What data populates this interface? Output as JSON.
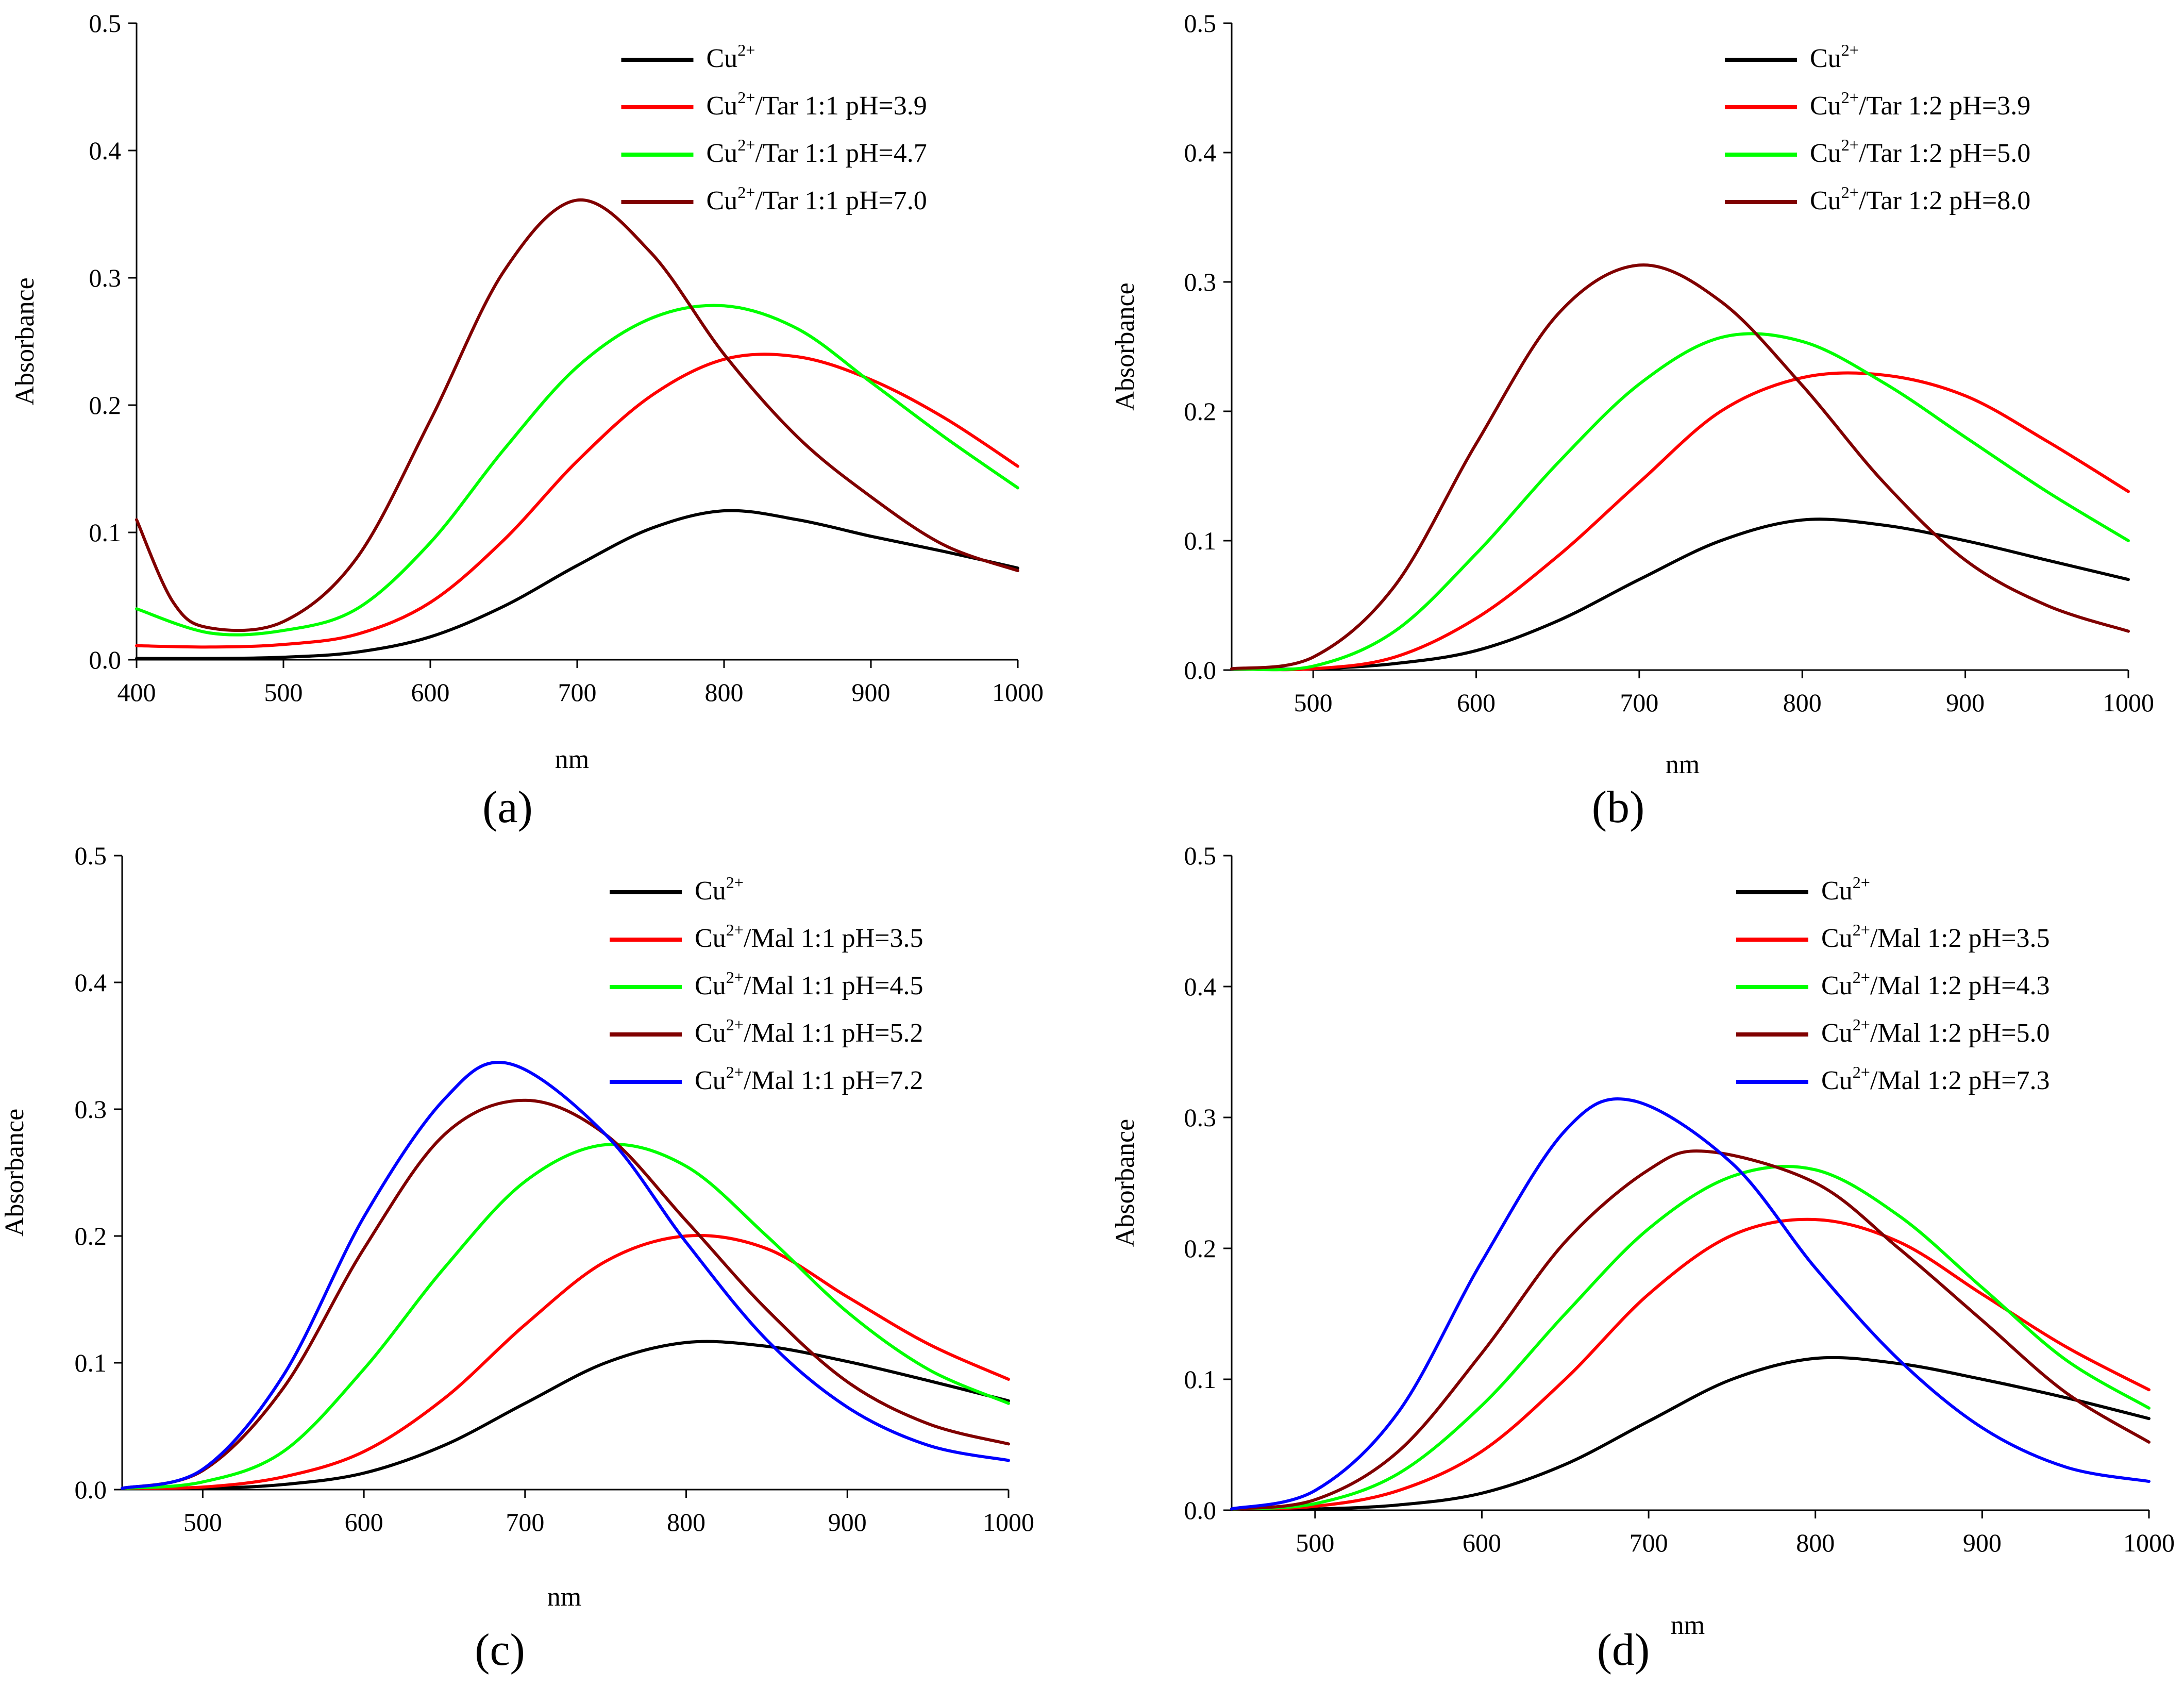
{
  "chart_data": [
    {
      "panel_label": "(a)",
      "type": "line",
      "xlabel": "nm",
      "ylabel": "Absorbance",
      "xlim": [
        400,
        1000
      ],
      "ylim": [
        0.0,
        0.5
      ],
      "xticks": [
        400,
        500,
        600,
        700,
        800,
        900,
        1000
      ],
      "yticks": [
        "0.0",
        "0.1",
        "0.2",
        "0.3",
        "0.4",
        "0.5"
      ],
      "legend_position": "top-right",
      "series": [
        {
          "name": "Cu²⁺",
          "color": "#000000",
          "x": [
            400,
            450,
            500,
            550,
            600,
            650,
            700,
            750,
            800,
            850,
            900,
            950,
            1000
          ],
          "y": [
            0.001,
            0.001,
            0.002,
            0.006,
            0.018,
            0.042,
            0.074,
            0.103,
            0.117,
            0.11,
            0.097,
            0.085,
            0.072
          ]
        },
        {
          "name": "Cu²⁺/Tar 1:1 pH=3.9",
          "color": "#ff0000",
          "x": [
            400,
            450,
            500,
            550,
            600,
            650,
            700,
            750,
            800,
            850,
            900,
            950,
            1000
          ],
          "y": [
            0.011,
            0.01,
            0.012,
            0.02,
            0.045,
            0.094,
            0.156,
            0.207,
            0.236,
            0.238,
            0.22,
            0.19,
            0.152
          ]
        },
        {
          "name": "Cu²⁺/Tar 1:1 pH=4.7",
          "color": "#00ff00",
          "x": [
            400,
            450,
            500,
            550,
            600,
            650,
            700,
            750,
            800,
            850,
            900,
            950,
            1000
          ],
          "y": [
            0.04,
            0.021,
            0.023,
            0.04,
            0.092,
            0.165,
            0.23,
            0.268,
            0.278,
            0.26,
            0.218,
            0.175,
            0.135
          ]
        },
        {
          "name": "Cu²⁺/Tar 1:1 pH=7.0",
          "color": "#800000",
          "x": [
            400,
            425,
            450,
            500,
            550,
            600,
            650,
            700,
            750,
            800,
            850,
            900,
            950,
            1000
          ],
          "y": [
            0.11,
            0.045,
            0.025,
            0.03,
            0.08,
            0.188,
            0.305,
            0.361,
            0.32,
            0.24,
            0.175,
            0.128,
            0.09,
            0.07
          ]
        }
      ]
    },
    {
      "panel_label": "(b)",
      "type": "line",
      "xlabel": "nm",
      "ylabel": "Absorbance",
      "xlim": [
        450,
        1000
      ],
      "ylim": [
        0.0,
        0.5
      ],
      "xticks": [
        500,
        600,
        700,
        800,
        900,
        1000
      ],
      "yticks": [
        "0.0",
        "0.1",
        "0.2",
        "0.3",
        "0.4",
        "0.5"
      ],
      "legend_position": "top-right",
      "series": [
        {
          "name": "Cu²⁺",
          "color": "#000000",
          "x": [
            450,
            500,
            550,
            600,
            650,
            700,
            750,
            800,
            850,
            900,
            950,
            1000
          ],
          "y": [
            0.001,
            0.001,
            0.005,
            0.015,
            0.038,
            0.07,
            0.1,
            0.116,
            0.112,
            0.1,
            0.085,
            0.07
          ]
        },
        {
          "name": "Cu²⁺/Tar 1:2 pH=3.9",
          "color": "#ff0000",
          "x": [
            450,
            500,
            550,
            600,
            650,
            700,
            750,
            800,
            850,
            900,
            950,
            1000
          ],
          "y": [
            0.001,
            0.001,
            0.01,
            0.04,
            0.088,
            0.145,
            0.2,
            0.226,
            0.228,
            0.212,
            0.177,
            0.138
          ]
        },
        {
          "name": "Cu²⁺/Tar 1:2 pH=5.0",
          "color": "#00ff00",
          "x": [
            450,
            500,
            550,
            600,
            650,
            700,
            750,
            800,
            850,
            900,
            950,
            1000
          ],
          "y": [
            0.001,
            0.003,
            0.03,
            0.09,
            0.16,
            0.221,
            0.257,
            0.254,
            0.222,
            0.18,
            0.138,
            0.1
          ]
        },
        {
          "name": "Cu²⁺/Tar 1:2 pH=8.0",
          "color": "#800000",
          "x": [
            450,
            500,
            550,
            600,
            650,
            700,
            750,
            800,
            850,
            900,
            950,
            1000
          ],
          "y": [
            0.001,
            0.01,
            0.065,
            0.175,
            0.275,
            0.313,
            0.285,
            0.22,
            0.145,
            0.085,
            0.05,
            0.03
          ]
        }
      ]
    },
    {
      "panel_label": "(c)",
      "type": "line",
      "xlabel": "nm",
      "ylabel": "Absorbance",
      "xlim": [
        450,
        1000
      ],
      "ylim": [
        0.0,
        0.5
      ],
      "xticks": [
        500,
        600,
        700,
        800,
        900,
        1000
      ],
      "yticks": [
        "0.0",
        "0.1",
        "0.2",
        "0.3",
        "0.4",
        "0.5"
      ],
      "legend_position": "top-right",
      "series": [
        {
          "name": "Cu²⁺",
          "color": "#000000",
          "x": [
            450,
            500,
            550,
            600,
            650,
            700,
            750,
            800,
            850,
            900,
            950,
            1000
          ],
          "y": [
            0.001,
            0.001,
            0.004,
            0.013,
            0.035,
            0.068,
            0.1,
            0.116,
            0.113,
            0.101,
            0.086,
            0.07
          ]
        },
        {
          "name": "Cu²⁺/Mal 1:1 pH=3.5",
          "color": "#ff0000",
          "x": [
            450,
            500,
            550,
            600,
            650,
            700,
            750,
            800,
            850,
            900,
            950,
            1000
          ],
          "y": [
            0.001,
            0.002,
            0.01,
            0.03,
            0.072,
            0.13,
            0.18,
            0.2,
            0.19,
            0.152,
            0.115,
            0.087
          ]
        },
        {
          "name": "Cu²⁺/Mal 1:1 pH=4.5",
          "color": "#00ff00",
          "x": [
            450,
            500,
            550,
            600,
            650,
            700,
            750,
            800,
            850,
            900,
            950,
            1000
          ],
          "y": [
            0.001,
            0.006,
            0.03,
            0.095,
            0.175,
            0.243,
            0.272,
            0.255,
            0.2,
            0.14,
            0.095,
            0.068
          ]
        },
        {
          "name": "Cu²⁺/Mal 1:1 pH=5.2",
          "color": "#800000",
          "x": [
            450,
            500,
            550,
            600,
            650,
            700,
            750,
            800,
            850,
            900,
            950,
            1000
          ],
          "y": [
            0.001,
            0.015,
            0.08,
            0.19,
            0.28,
            0.307,
            0.28,
            0.212,
            0.142,
            0.085,
            0.052,
            0.036
          ]
        },
        {
          "name": "Cu²⁺/Mal 1:1 pH=7.2",
          "color": "#0000ff",
          "x": [
            450,
            500,
            550,
            600,
            650,
            690,
            750,
            800,
            850,
            900,
            950,
            1000
          ],
          "y": [
            0.001,
            0.016,
            0.09,
            0.215,
            0.308,
            0.336,
            0.28,
            0.195,
            0.118,
            0.065,
            0.035,
            0.023
          ]
        }
      ]
    },
    {
      "panel_label": "(d)",
      "type": "line",
      "xlabel": "nm",
      "ylabel": "Absorbance",
      "xlim": [
        450,
        1000
      ],
      "ylim": [
        0.0,
        0.5
      ],
      "xticks": [
        500,
        600,
        700,
        800,
        900,
        1000
      ],
      "yticks": [
        "0.0",
        "0.1",
        "0.2",
        "0.3",
        "0.4",
        "0.5"
      ],
      "legend_position": "top-right",
      "series": [
        {
          "name": "Cu²⁺",
          "color": "#000000",
          "x": [
            450,
            500,
            550,
            600,
            650,
            700,
            750,
            800,
            850,
            900,
            950,
            1000
          ],
          "y": [
            0.001,
            0.001,
            0.004,
            0.013,
            0.035,
            0.068,
            0.1,
            0.116,
            0.112,
            0.1,
            0.086,
            0.07
          ]
        },
        {
          "name": "Cu²⁺/Mal 1:2 pH=3.5",
          "color": "#ff0000",
          "x": [
            450,
            500,
            550,
            600,
            650,
            700,
            750,
            800,
            850,
            900,
            950,
            1000
          ],
          "y": [
            0.001,
            0.003,
            0.015,
            0.045,
            0.1,
            0.165,
            0.21,
            0.222,
            0.205,
            0.165,
            0.125,
            0.092
          ]
        },
        {
          "name": "Cu²⁺/Mal 1:2 pH=4.3",
          "color": "#00ff00",
          "x": [
            450,
            500,
            550,
            600,
            650,
            700,
            750,
            800,
            850,
            900,
            950,
            1000
          ],
          "y": [
            0.001,
            0.005,
            0.028,
            0.08,
            0.15,
            0.215,
            0.255,
            0.26,
            0.225,
            0.17,
            0.115,
            0.078
          ]
        },
        {
          "name": "Cu²⁺/Mal 1:2 pH=5.0",
          "color": "#800000",
          "x": [
            450,
            500,
            550,
            600,
            650,
            700,
            735,
            800,
            850,
            900,
            950,
            1000
          ],
          "y": [
            0.001,
            0.008,
            0.045,
            0.12,
            0.205,
            0.26,
            0.274,
            0.25,
            0.2,
            0.145,
            0.09,
            0.052
          ]
        },
        {
          "name": "Cu²⁺/Mal 1:2 pH=7.3",
          "color": "#0000ff",
          "x": [
            450,
            500,
            550,
            600,
            650,
            690,
            750,
            800,
            850,
            900,
            950,
            1000
          ],
          "y": [
            0.001,
            0.015,
            0.075,
            0.19,
            0.29,
            0.313,
            0.265,
            0.185,
            0.115,
            0.063,
            0.033,
            0.022
          ]
        }
      ]
    }
  ]
}
